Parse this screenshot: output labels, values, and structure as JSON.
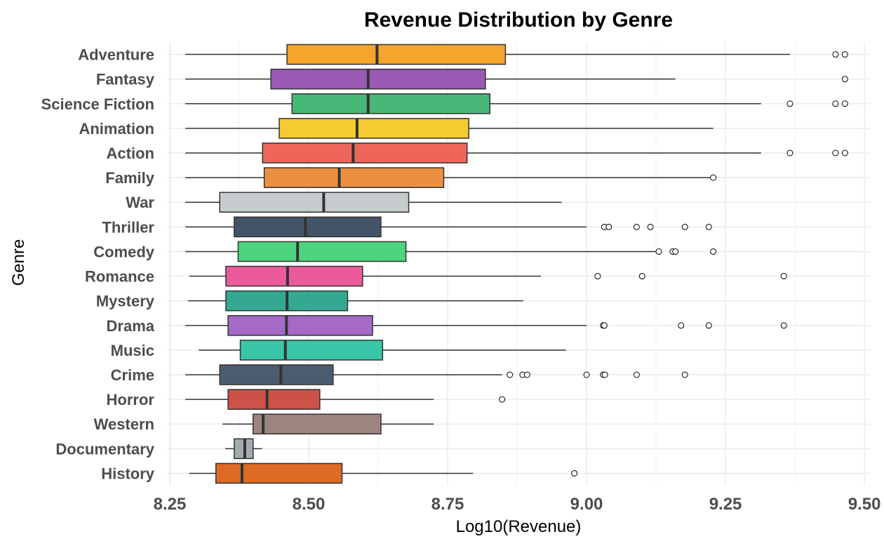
{
  "chart_data": {
    "type": "boxplot",
    "orientation": "horizontal",
    "title": "Revenue Distribution by Genre",
    "xlabel": "Log10(Revenue)",
    "ylabel": "Genre",
    "xlim": [
      8.245,
      9.51
    ],
    "x_ticks": [
      8.25,
      8.5,
      8.75,
      9.0,
      9.25,
      9.5
    ],
    "x_tick_labels": [
      "8.25",
      "8.50",
      "8.75",
      "9.00",
      "9.25",
      "9.50"
    ],
    "grid": true,
    "legend": "none",
    "series": [
      {
        "category": "Adventure",
        "whisker_low": 8.278,
        "q1": 8.461,
        "median": 8.623,
        "q3": 8.854,
        "whisker_high": 9.366,
        "outliers": [
          9.448,
          9.465
        ],
        "color": "#F5A42C"
      },
      {
        "category": "Fantasy",
        "whisker_low": 8.278,
        "q1": 8.432,
        "median": 8.607,
        "q3": 8.818,
        "whisker_high": 9.16,
        "outliers": [
          9.465
        ],
        "color": "#9B59B6"
      },
      {
        "category": "Science Fiction",
        "whisker_low": 8.278,
        "q1": 8.47,
        "median": 8.607,
        "q3": 8.826,
        "whisker_high": 9.314,
        "outliers": [
          9.366,
          9.448,
          9.465
        ],
        "color": "#48B878"
      },
      {
        "category": "Animation",
        "whisker_low": 8.278,
        "q1": 8.447,
        "median": 8.587,
        "q3": 8.788,
        "whisker_high": 9.228,
        "outliers": [],
        "color": "#F4CB30"
      },
      {
        "category": "Action",
        "whisker_low": 8.278,
        "q1": 8.417,
        "median": 8.58,
        "q3": 8.785,
        "whisker_high": 9.314,
        "outliers": [
          9.366,
          9.448,
          9.465
        ],
        "color": "#EE655A"
      },
      {
        "category": "Family",
        "whisker_low": 8.278,
        "q1": 8.42,
        "median": 8.555,
        "q3": 8.743,
        "whisker_high": 9.222,
        "outliers": [
          9.228
        ],
        "color": "#EB9042"
      },
      {
        "category": "War",
        "whisker_low": 8.278,
        "q1": 8.34,
        "median": 8.527,
        "q3": 8.68,
        "whisker_high": 8.955,
        "outliers": [],
        "color": "#C6CBCD"
      },
      {
        "category": "Thriller",
        "whisker_low": 8.278,
        "q1": 8.366,
        "median": 8.494,
        "q3": 8.63,
        "whisker_high": 9.0,
        "outliers": [
          9.032,
          9.04,
          9.09,
          9.115,
          9.177,
          9.22
        ],
        "color": "#445468"
      },
      {
        "category": "Comedy",
        "whisker_low": 8.278,
        "q1": 8.373,
        "median": 8.48,
        "q3": 8.675,
        "whisker_high": 9.128,
        "outliers": [
          9.13,
          9.155,
          9.16,
          9.228
        ],
        "color": "#4CD480"
      },
      {
        "category": "Romance",
        "whisker_low": 8.285,
        "q1": 8.351,
        "median": 8.462,
        "q3": 8.597,
        "whisker_high": 8.918,
        "outliers": [
          9.02,
          9.1,
          9.355
        ],
        "color": "#EB5B9B"
      },
      {
        "category": "Mystery",
        "whisker_low": 8.283,
        "q1": 8.351,
        "median": 8.461,
        "q3": 8.57,
        "whisker_high": 8.886,
        "outliers": [],
        "color": "#35A892"
      },
      {
        "category": "Drama",
        "whisker_low": 8.278,
        "q1": 8.355,
        "median": 8.46,
        "q3": 8.615,
        "whisker_high": 9.0,
        "outliers": [
          9.03,
          9.032,
          9.17,
          9.22,
          9.355
        ],
        "color": "#A569C6"
      },
      {
        "category": "Music",
        "whisker_low": 8.302,
        "q1": 8.377,
        "median": 8.458,
        "q3": 8.633,
        "whisker_high": 8.963,
        "outliers": [],
        "color": "#39C6A8"
      },
      {
        "category": "Crime",
        "whisker_low": 8.278,
        "q1": 8.34,
        "median": 8.45,
        "q3": 8.544,
        "whisker_high": 8.848,
        "outliers": [
          8.862,
          8.885,
          8.893,
          9.0,
          9.03,
          9.033,
          9.09,
          9.177
        ],
        "color": "#4C5C70"
      },
      {
        "category": "Horror",
        "whisker_low": 8.278,
        "q1": 8.355,
        "median": 8.425,
        "q3": 8.52,
        "whisker_high": 8.725,
        "outliers": [
          8.848
        ],
        "color": "#CC5248"
      },
      {
        "category": "Western",
        "whisker_low": 8.345,
        "q1": 8.4,
        "median": 8.418,
        "q3": 8.63,
        "whisker_high": 8.725,
        "outliers": [],
        "color": "#9C857F"
      },
      {
        "category": "Documentary",
        "whisker_low": 8.35,
        "q1": 8.366,
        "median": 8.385,
        "q3": 8.4,
        "whisker_high": 8.416,
        "outliers": [],
        "color": "#A2ACAF"
      },
      {
        "category": "History",
        "whisker_low": 8.285,
        "q1": 8.333,
        "median": 8.38,
        "q3": 8.56,
        "whisker_high": 8.796,
        "outliers": [
          8.978
        ],
        "color": "#DD6B26"
      }
    ]
  }
}
